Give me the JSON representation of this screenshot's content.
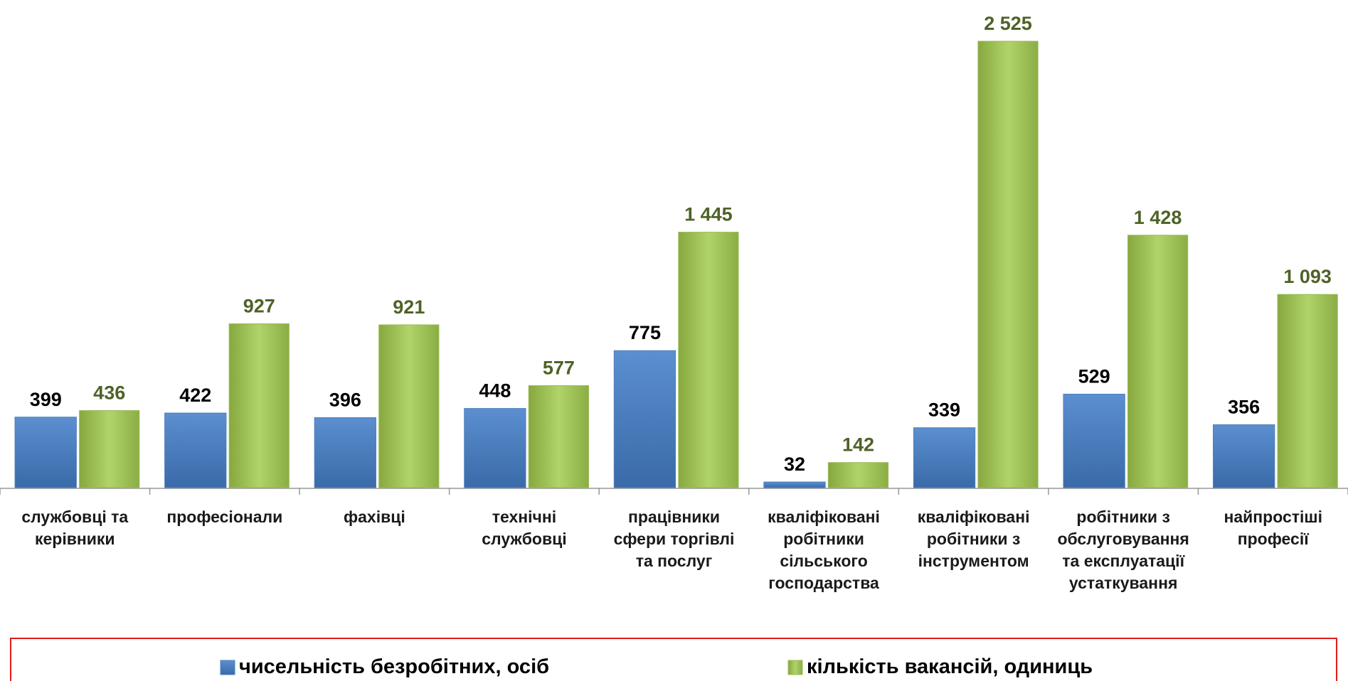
{
  "chart_data": {
    "type": "bar",
    "categories": [
      "службовці та\nкерівники",
      "професіонали",
      "фахівці",
      "технічні\nслужбовці",
      "працівники\nсфери торгівлі\nта послуг",
      "кваліфіковані\nробітники\nсільського\nгосподарства",
      "кваліфіковані\nробітники з\nінструментом",
      "робітники з\nобслуговування\nта експлуатації\nустаткування",
      "найпростіші\nпрофесії"
    ],
    "series": [
      {
        "name": "чисельність безробітних, осіб",
        "color": "#4f81bd",
        "values": [
          399,
          422,
          396,
          448,
          775,
          32,
          339,
          529,
          356
        ]
      },
      {
        "name": "кількість вакансій, одиниць",
        "color": "#9bbb59",
        "values": [
          436,
          927,
          921,
          577,
          1445,
          142,
          2525,
          1428,
          1093
        ],
        "value_labels": [
          "436",
          "927",
          "921",
          "577",
          "1 445",
          "142",
          "2 525",
          "1 428",
          "1 093"
        ]
      }
    ],
    "legend": "bottom"
  }
}
